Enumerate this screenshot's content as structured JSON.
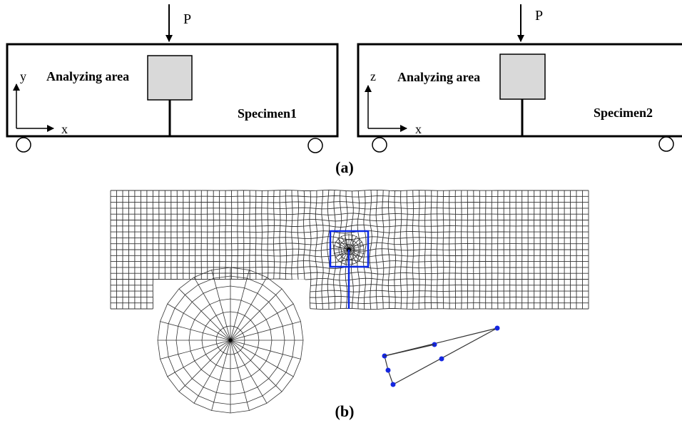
{
  "panel_a": {
    "caption": "(a)",
    "specimen1": {
      "load_label": "P",
      "area_label": "Analyzing area",
      "axis_vertical": "y",
      "axis_horizontal": "x",
      "name": "Specimen1"
    },
    "specimen2": {
      "load_label": "P",
      "area_label": "Analyzing area",
      "axis_vertical": "z",
      "axis_horizontal": "x",
      "name": "Specimen2"
    }
  },
  "panel_b": {
    "caption": "(b)"
  },
  "colors": {
    "line": "#000000",
    "analyzing_fill": "#d9d9d9",
    "mesh": "#333333",
    "highlight": "#0a28e6",
    "node": "#1426e0"
  }
}
